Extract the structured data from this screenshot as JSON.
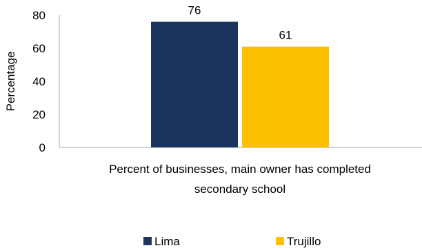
{
  "chart_data": {
    "type": "bar",
    "categories": [
      "Percent of businesses, main owner has completed secondary school"
    ],
    "xlabel_lines": [
      "Percent of businesses, main owner has completed",
      "secondary school"
    ],
    "ylabel": "Percentage",
    "ylim": [
      0,
      80
    ],
    "yticks": [
      "0",
      "20",
      "40",
      "60",
      "80"
    ],
    "series": [
      {
        "name": "Lima",
        "values": [
          76
        ],
        "color": "#1c355e"
      },
      {
        "name": "Trujillo",
        "values": [
          61
        ],
        "color": "#fcc000"
      }
    ],
    "grid": false,
    "legend_position": "bottom"
  }
}
